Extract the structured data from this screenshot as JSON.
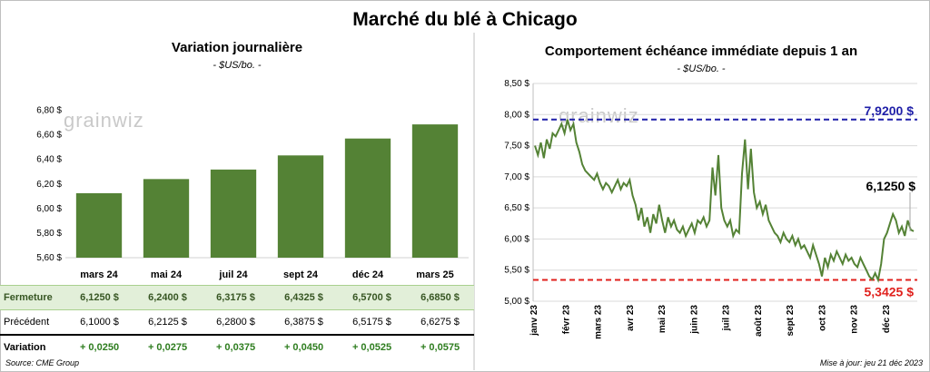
{
  "title": "Marché du blé à Chicago",
  "left": {
    "title": "Variation  journalière",
    "subtitle": "- $US/bo. -",
    "watermark": "grainwiz",
    "table": {
      "rows": [
        {
          "label": "Fermeture",
          "cells": [
            "6,1250  $",
            "6,2400  $",
            "6,3175  $",
            "6,4325  $",
            "6,5700  $",
            "6,6850  $"
          ]
        },
        {
          "label": "Précédent",
          "cells": [
            "6,1000  $",
            "6,2125  $",
            "6,2800  $",
            "6,3875  $",
            "6,5175  $",
            "6,6275  $"
          ]
        },
        {
          "label": "Variation",
          "cells": [
            "+ 0,0250",
            "+ 0,0275",
            "+ 0,0375",
            "+ 0,0450",
            "+ 0,0525",
            "+ 0,0575"
          ]
        }
      ]
    }
  },
  "right": {
    "title": "Comportement  échéance immédiate depuis 1 an",
    "subtitle": "- $US/bo. -",
    "watermark": "grainwiz"
  },
  "source": "Source: CME Group",
  "updated": "Mise à jour: jeu 21 déc 2023",
  "colors": {
    "bar": "#548235",
    "line": "#548235",
    "high": "#1f1fa8",
    "low": "#e0201c"
  },
  "chart_data": [
    {
      "type": "bar",
      "categories": [
        "mars 24",
        "mai 24",
        "juil 24",
        "sept 24",
        "déc 24",
        "mars 25"
      ],
      "values": [
        6.125,
        6.24,
        6.3175,
        6.4325,
        6.57,
        6.685
      ],
      "ylim": [
        5.6,
        6.9
      ],
      "yticks": [
        5.6,
        5.8,
        6.0,
        6.2,
        6.4,
        6.6,
        6.8
      ],
      "ytick_labels": [
        "5,60 $",
        "5,80 $",
        "6,00 $",
        "6,20 $",
        "6,40 $",
        "6,60 $",
        "6,80 $"
      ],
      "grid": false
    },
    {
      "type": "line",
      "x_labels": [
        "janv 23",
        "févr 23",
        "mars 23",
        "avr 23",
        "mai 23",
        "juin 23",
        "juil 23",
        "août 23",
        "sept 23",
        "oct 23",
        "nov 23",
        "déc 23"
      ],
      "ylim": [
        5.0,
        8.5
      ],
      "yticks": [
        5.0,
        5.5,
        6.0,
        6.5,
        7.0,
        7.5,
        8.0,
        8.5
      ],
      "ytick_labels": [
        "5,00 $",
        "5,50 $",
        "6,00 $",
        "6,50 $",
        "7,00 $",
        "7,50 $",
        "8,00 $",
        "8,50 $"
      ],
      "high": 7.92,
      "high_label": "7,9200 $",
      "low": 5.3425,
      "low_label": "5,3425  $",
      "last": 6.125,
      "last_label": "6,1250 $",
      "series": [
        {
          "values": [
            7.5,
            7.35,
            7.55,
            7.3,
            7.6,
            7.45,
            7.7,
            7.65,
            7.75,
            7.85,
            7.7,
            7.92,
            7.75,
            7.85,
            7.55,
            7.4,
            7.2,
            7.1,
            7.05,
            7.0,
            6.95,
            7.05,
            6.9,
            6.8,
            6.9,
            6.85,
            6.75,
            6.85,
            6.95,
            6.8,
            6.9,
            6.85,
            6.95,
            6.7,
            6.55,
            6.3,
            6.5,
            6.2,
            6.35,
            6.1,
            6.4,
            6.25,
            6.55,
            6.3,
            6.1,
            6.35,
            6.2,
            6.3,
            6.15,
            6.1,
            6.2,
            6.05,
            6.15,
            6.25,
            6.1,
            6.3,
            6.25,
            6.35,
            6.2,
            6.3,
            7.15,
            6.7,
            7.35,
            6.5,
            6.3,
            6.2,
            6.3,
            6.05,
            6.15,
            6.1,
            7.05,
            7.6,
            6.8,
            7.45,
            6.75,
            6.5,
            6.6,
            6.4,
            6.55,
            6.3,
            6.2,
            6.1,
            6.05,
            5.95,
            6.1,
            6.0,
            5.95,
            6.05,
            5.9,
            6.0,
            5.85,
            5.9,
            5.8,
            5.7,
            5.9,
            5.75,
            5.6,
            5.4,
            5.7,
            5.55,
            5.75,
            5.65,
            5.8,
            5.7,
            5.6,
            5.75,
            5.65,
            5.7,
            5.6,
            5.55,
            5.7,
            5.6,
            5.5,
            5.4,
            5.35,
            5.45,
            5.3425,
            5.6,
            6.0,
            6.1,
            6.25,
            6.4,
            6.3,
            6.1,
            6.2,
            6.05,
            6.3,
            6.15,
            6.125
          ]
        }
      ],
      "grid": true
    }
  ]
}
